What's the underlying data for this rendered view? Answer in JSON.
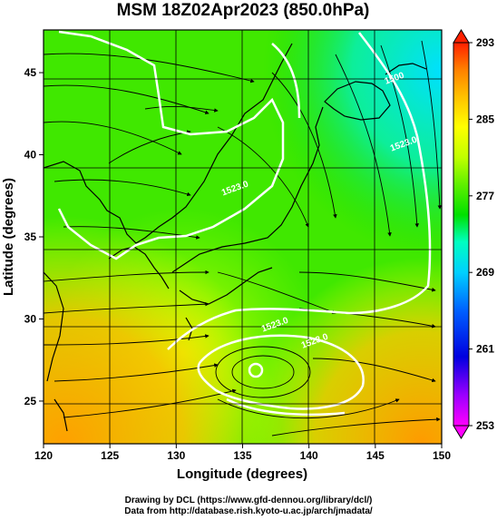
{
  "figure": {
    "title": "MSM 18Z02Apr2023 (850.0hPa)",
    "xlabel": "Longitude (degrees)",
    "ylabel": "Latitude  (degrees)",
    "credit_line1": "Drawing by DCL (https://www.gfd-dennou.org/library/dcl/)",
    "credit_line2": "Data from http://database.rish.kyoto-u.ac.jp/arch/jmadata/"
  },
  "chart_data": {
    "type": "heatmap",
    "variable": "850 hPa temperature shading with geopotential height contours and wind streamlines",
    "xlim": [
      120,
      150
    ],
    "ylim": [
      22.4,
      47.6
    ],
    "x_ticks": [
      120,
      125,
      130,
      135,
      140,
      145,
      150
    ],
    "y_ticks": [
      25,
      30,
      35,
      40,
      45
    ],
    "colorbar": {
      "min": 253,
      "max": 293,
      "ticks": [
        253,
        261,
        269,
        277,
        285,
        293
      ]
    },
    "contour_labels": [
      {
        "text": "1523.0",
        "lon": 134.5,
        "lat": 37.8
      },
      {
        "text": "1523.0",
        "lon": 137.5,
        "lat": 29.5
      },
      {
        "text": "1523.0",
        "lon": 140.5,
        "lat": 28.5
      },
      {
        "text": "1523.0",
        "lon": 147.2,
        "lat": 40.5
      },
      {
        "text": "1500",
        "lon": 146.5,
        "lat": 44.5
      }
    ],
    "grid": true
  },
  "colors": {
    "cold": "#00ffff",
    "warm": "#ffa500",
    "contour": "#ffffff",
    "land_outline": "#000000"
  }
}
